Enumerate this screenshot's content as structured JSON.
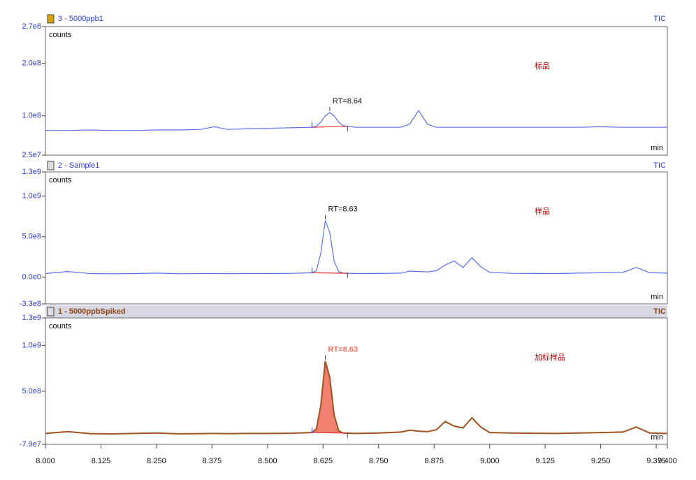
{
  "chart_data": [
    {
      "type": "line",
      "title": "3 - 5000ppb1",
      "title_color": "#2b3ccf",
      "tag": "TIC",
      "ylabel": "counts",
      "xlabel": "min",
      "annotation": "RT=8.64",
      "annotation_color": "#111111",
      "sample_label": "标品",
      "label_color": "#c00000",
      "xlim": [
        8.0,
        9.4
      ],
      "ylim": [
        25000000,
        270000000
      ],
      "yticks": [
        {
          "value": 25000000,
          "label": "2.5e7"
        },
        {
          "value": 100000000,
          "label": "1.0e8"
        },
        {
          "value": 200000000,
          "label": "2.0e8"
        },
        {
          "value": 270000000,
          "label": "2.7e8"
        }
      ],
      "color": "#5b6ff0",
      "integration": [
        8.6,
        8.68
      ],
      "x": [
        8.0,
        8.05,
        8.1,
        8.15,
        8.2,
        8.25,
        8.3,
        8.35,
        8.38,
        8.41,
        8.45,
        8.5,
        8.55,
        8.6,
        8.61,
        8.62,
        8.63,
        8.64,
        8.65,
        8.66,
        8.67,
        8.7,
        8.75,
        8.8,
        8.82,
        8.84,
        8.86,
        8.88,
        8.9,
        8.92,
        8.94,
        8.96,
        8.98,
        9.0,
        9.05,
        9.1,
        9.15,
        9.2,
        9.25,
        9.3,
        9.33,
        9.36,
        9.4
      ],
      "values": [
        72000000,
        72000000,
        73000000,
        72000000,
        72000000,
        73000000,
        73000000,
        74000000,
        79000000,
        74000000,
        75000000,
        76000000,
        77000000,
        78000000,
        80000000,
        88000000,
        100000000,
        106000000,
        100000000,
        88000000,
        81000000,
        78000000,
        78000000,
        78000000,
        84000000,
        110000000,
        84000000,
        78000000,
        78000000,
        78000000,
        78000000,
        78000000,
        78000000,
        78000000,
        78000000,
        78000000,
        78000000,
        78000000,
        79000000,
        78000000,
        78000000,
        78000000,
        78000000
      ]
    },
    {
      "type": "line",
      "title": "2 - Sample1",
      "title_color": "#2b3ccf",
      "tag": "TIC",
      "ylabel": "counts",
      "xlabel": "min",
      "annotation": "RT=8.63",
      "annotation_color": "#111111",
      "sample_label": "样品",
      "label_color": "#c00000",
      "xlim": [
        8.0,
        9.4
      ],
      "ylim": [
        -330000000,
        1300000000
      ],
      "yticks": [
        {
          "value": -330000000,
          "label": "-3.3e8"
        },
        {
          "value": 0,
          "label": "0.0e0"
        },
        {
          "value": 500000000,
          "label": "5.0e8"
        },
        {
          "value": 1000000000,
          "label": "1.0e9"
        },
        {
          "value": 1300000000,
          "label": "1.3e9"
        }
      ],
      "color": "#5b6ff0",
      "integration": [
        8.6,
        8.68
      ],
      "x": [
        8.0,
        8.05,
        8.1,
        8.15,
        8.2,
        8.25,
        8.3,
        8.35,
        8.38,
        8.41,
        8.45,
        8.5,
        8.55,
        8.6,
        8.61,
        8.62,
        8.63,
        8.64,
        8.65,
        8.66,
        8.67,
        8.7,
        8.75,
        8.8,
        8.82,
        8.84,
        8.86,
        8.88,
        8.9,
        8.92,
        8.94,
        8.96,
        8.98,
        9.0,
        9.05,
        9.1,
        9.15,
        9.2,
        9.25,
        9.3,
        9.33,
        9.36,
        9.4
      ],
      "values": [
        45000000,
        70000000,
        45000000,
        42000000,
        45000000,
        50000000,
        43000000,
        45000000,
        45000000,
        44000000,
        45000000,
        45000000,
        47000000,
        55000000,
        80000000,
        300000000,
        700000000,
        550000000,
        200000000,
        70000000,
        50000000,
        45000000,
        46000000,
        50000000,
        75000000,
        70000000,
        65000000,
        80000000,
        150000000,
        200000000,
        120000000,
        240000000,
        130000000,
        60000000,
        48000000,
        46000000,
        45000000,
        50000000,
        55000000,
        60000000,
        120000000,
        55000000,
        50000000
      ]
    },
    {
      "type": "line",
      "title": "1 - 5000ppbSpiked",
      "title_color": "#8b4513",
      "tag": "TIC",
      "ylabel": "counts",
      "xlabel": "min",
      "annotation": "RT=8.63",
      "annotation_color": "#f07060",
      "sample_label": "加标样品",
      "label_color": "#c00000",
      "xlim": [
        8.0,
        9.4
      ],
      "ylim": [
        -79000000,
        1300000000
      ],
      "yticks": [
        {
          "value": -79000000,
          "label": "-7.9e7"
        },
        {
          "value": 500000000,
          "label": "5.0e8"
        },
        {
          "value": 1000000000,
          "label": "1.0e9"
        },
        {
          "value": 1300000000,
          "label": "1.3e9"
        }
      ],
      "xticks": [
        {
          "value": 8.0,
          "label": "8.000"
        },
        {
          "value": 8.125,
          "label": "8.125"
        },
        {
          "value": 8.25,
          "label": "8.250"
        },
        {
          "value": 8.375,
          "label": "8.375"
        },
        {
          "value": 8.5,
          "label": "8.500"
        },
        {
          "value": 8.625,
          "label": "8.625"
        },
        {
          "value": 8.75,
          "label": "8.750"
        },
        {
          "value": 8.875,
          "label": "8.875"
        },
        {
          "value": 9.0,
          "label": "9.000"
        },
        {
          "value": 9.125,
          "label": "9.125"
        },
        {
          "value": 9.25,
          "label": "9.250"
        },
        {
          "value": 9.375,
          "label": "9.375"
        },
        {
          "value": 9.4,
          "label": "9.400"
        }
      ],
      "color": "#a0521e",
      "fill_color": "#f08070",
      "integration": [
        8.6,
        8.68
      ],
      "x": [
        8.0,
        8.05,
        8.1,
        8.15,
        8.2,
        8.25,
        8.3,
        8.35,
        8.38,
        8.41,
        8.45,
        8.5,
        8.55,
        8.6,
        8.61,
        8.62,
        8.63,
        8.64,
        8.65,
        8.66,
        8.67,
        8.7,
        8.75,
        8.8,
        8.82,
        8.84,
        8.86,
        8.88,
        8.9,
        8.92,
        8.94,
        8.96,
        8.98,
        9.0,
        9.05,
        9.1,
        9.15,
        9.2,
        9.25,
        9.3,
        9.33,
        9.36,
        9.4
      ],
      "values": [
        40000000,
        60000000,
        38000000,
        35000000,
        40000000,
        45000000,
        36000000,
        38000000,
        40000000,
        38000000,
        40000000,
        40000000,
        42000000,
        50000000,
        90000000,
        350000000,
        830000000,
        650000000,
        240000000,
        70000000,
        45000000,
        40000000,
        45000000,
        55000000,
        75000000,
        65000000,
        60000000,
        80000000,
        170000000,
        120000000,
        100000000,
        210000000,
        110000000,
        50000000,
        45000000,
        42000000,
        40000000,
        45000000,
        50000000,
        55000000,
        110000000,
        45000000,
        40000000
      ]
    }
  ]
}
